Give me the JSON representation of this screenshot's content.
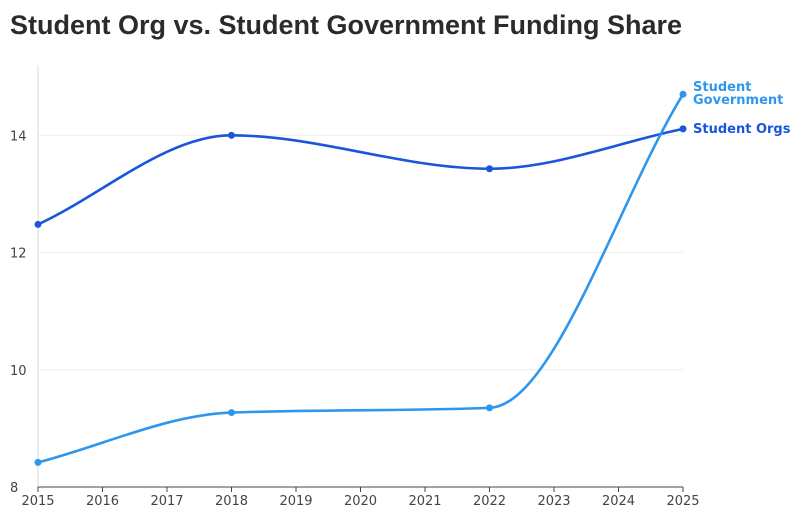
{
  "chart_data": {
    "type": "line",
    "title": "Student Org vs. Student Government Funding Share",
    "xlabel": "",
    "ylabel": "",
    "x": [
      2015,
      2016,
      2017,
      2018,
      2019,
      2020,
      2021,
      2022,
      2023,
      2024,
      2025
    ],
    "xlim": [
      2015,
      2025
    ],
    "ylim": [
      8,
      15.2
    ],
    "yticks": [
      8,
      10,
      12,
      14
    ],
    "grid": "horizontal",
    "legend": "direct labels at line ends",
    "series": [
      {
        "name": "Student Orgs",
        "label_lines": [
          "Student Orgs"
        ],
        "color": "#1a56db",
        "points": [
          [
            2015,
            12.48
          ],
          [
            2018,
            14.0
          ],
          [
            2022,
            13.43
          ],
          [
            2025,
            14.11
          ]
        ]
      },
      {
        "name": "Student Government",
        "label_lines": [
          "Student",
          "Government"
        ],
        "color": "#2f96ee",
        "points": [
          [
            2015,
            8.42
          ],
          [
            2018,
            9.27
          ],
          [
            2022,
            9.35
          ],
          [
            2025,
            14.7
          ]
        ]
      }
    ]
  }
}
